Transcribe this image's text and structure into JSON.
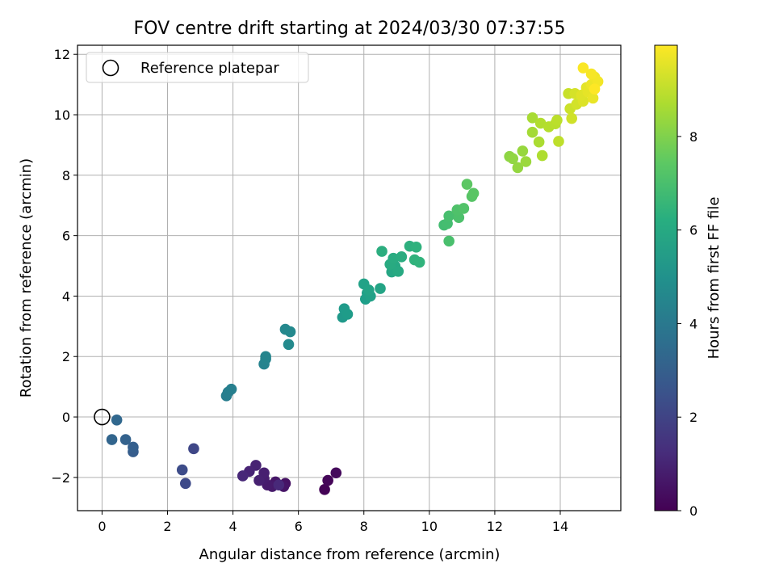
{
  "chart_data": {
    "type": "scatter",
    "title": "FOV centre drift starting at 2024/03/30 07:37:55",
    "xlabel": "Angular distance from reference (arcmin)",
    "ylabel": "Rotation from reference (arcmin)",
    "xlim": [
      -0.75,
      15.85
    ],
    "ylim": [
      -3.1,
      12.3
    ],
    "xticks": [
      0,
      2,
      4,
      6,
      8,
      10,
      12,
      14
    ],
    "yticks": [
      -2,
      0,
      2,
      4,
      6,
      8,
      10,
      12
    ],
    "grid": true,
    "legend": {
      "placement": "top-left",
      "entries": [
        "Reference platepar"
      ]
    },
    "reference_point": {
      "x": 0,
      "y": 0,
      "label": "Reference platepar"
    },
    "colorbar": {
      "label": "Hours from first FF file",
      "colormap": "viridis",
      "range": [
        0,
        9.95
      ],
      "ticks": [
        0,
        2,
        4,
        6,
        8
      ]
    },
    "series": [
      {
        "points": [
          {
            "x": 6.8,
            "y": -2.4,
            "t": 0.05
          },
          {
            "x": 6.9,
            "y": -2.1,
            "t": 0.15
          },
          {
            "x": 7.15,
            "y": -1.85,
            "t": 0.25
          },
          {
            "x": 5.6,
            "y": -2.2,
            "t": 0.45
          },
          {
            "x": 5.55,
            "y": -2.3,
            "t": 0.55
          },
          {
            "x": 5.3,
            "y": -2.15,
            "t": 0.6
          },
          {
            "x": 5.2,
            "y": -2.3,
            "t": 0.7
          },
          {
            "x": 5.05,
            "y": -2.25,
            "t": 0.75
          },
          {
            "x": 4.95,
            "y": -2.05,
            "t": 0.8
          },
          {
            "x": 4.95,
            "y": -1.85,
            "t": 0.85
          },
          {
            "x": 4.8,
            "y": -2.1,
            "t": 0.9
          },
          {
            "x": 4.7,
            "y": -1.6,
            "t": 0.95
          },
          {
            "x": 4.5,
            "y": -1.8,
            "t": 1.0
          },
          {
            "x": 4.3,
            "y": -1.95,
            "t": 1.1
          },
          {
            "x": 5.4,
            "y": -2.25,
            "t": 1.15
          },
          {
            "x": 2.8,
            "y": -1.05,
            "t": 2.1
          },
          {
            "x": 2.55,
            "y": -2.2,
            "t": 2.2
          },
          {
            "x": 2.45,
            "y": -1.75,
            "t": 2.3
          },
          {
            "x": 0.95,
            "y": -1.15,
            "t": 2.9
          },
          {
            "x": 0.95,
            "y": -1.0,
            "t": 3.0
          },
          {
            "x": 0.72,
            "y": -0.75,
            "t": 3.1
          },
          {
            "x": 0.3,
            "y": -0.75,
            "t": 3.2
          },
          {
            "x": 0.45,
            "y": -0.1,
            "t": 3.3
          },
          {
            "x": 3.8,
            "y": 0.7,
            "t": 4.2
          },
          {
            "x": 3.85,
            "y": 0.82,
            "t": 4.25
          },
          {
            "x": 3.95,
            "y": 0.92,
            "t": 4.3
          },
          {
            "x": 4.95,
            "y": 1.75,
            "t": 4.45
          },
          {
            "x": 5.0,
            "y": 1.92,
            "t": 4.5
          },
          {
            "x": 5.0,
            "y": 2.0,
            "t": 4.55
          },
          {
            "x": 5.6,
            "y": 2.9,
            "t": 4.65
          },
          {
            "x": 5.75,
            "y": 2.82,
            "t": 4.7
          },
          {
            "x": 5.7,
            "y": 2.4,
            "t": 4.75
          },
          {
            "x": 7.35,
            "y": 3.3,
            "t": 5.35
          },
          {
            "x": 7.4,
            "y": 3.58,
            "t": 5.4
          },
          {
            "x": 7.5,
            "y": 3.4,
            "t": 5.45
          },
          {
            "x": 8.05,
            "y": 3.9,
            "t": 5.55
          },
          {
            "x": 8.1,
            "y": 4.1,
            "t": 5.6
          },
          {
            "x": 8.2,
            "y": 4.0,
            "t": 5.65
          },
          {
            "x": 8.0,
            "y": 4.4,
            "t": 5.7
          },
          {
            "x": 8.15,
            "y": 4.2,
            "t": 5.75
          },
          {
            "x": 8.5,
            "y": 4.25,
            "t": 5.8
          },
          {
            "x": 8.85,
            "y": 4.8,
            "t": 5.9
          },
          {
            "x": 8.95,
            "y": 5.0,
            "t": 5.95
          },
          {
            "x": 9.05,
            "y": 4.82,
            "t": 6.0
          },
          {
            "x": 8.8,
            "y": 5.05,
            "t": 6.05
          },
          {
            "x": 8.9,
            "y": 5.25,
            "t": 6.1
          },
          {
            "x": 9.15,
            "y": 5.3,
            "t": 6.15
          },
          {
            "x": 8.55,
            "y": 5.48,
            "t": 6.2
          },
          {
            "x": 9.4,
            "y": 5.65,
            "t": 6.3
          },
          {
            "x": 9.6,
            "y": 5.62,
            "t": 6.35
          },
          {
            "x": 9.55,
            "y": 5.2,
            "t": 6.4
          },
          {
            "x": 9.7,
            "y": 5.12,
            "t": 6.45
          },
          {
            "x": 10.45,
            "y": 6.35,
            "t": 6.9
          },
          {
            "x": 10.55,
            "y": 6.4,
            "t": 6.95
          },
          {
            "x": 10.6,
            "y": 6.65,
            "t": 7.0
          },
          {
            "x": 10.6,
            "y": 5.82,
            "t": 7.05
          },
          {
            "x": 10.9,
            "y": 6.6,
            "t": 7.1
          },
          {
            "x": 10.85,
            "y": 6.85,
            "t": 7.15
          },
          {
            "x": 11.05,
            "y": 6.9,
            "t": 7.2
          },
          {
            "x": 11.3,
            "y": 7.3,
            "t": 7.3
          },
          {
            "x": 11.35,
            "y": 7.4,
            "t": 7.35
          },
          {
            "x": 11.15,
            "y": 7.7,
            "t": 7.4
          },
          {
            "x": 12.45,
            "y": 8.62,
            "t": 8.25
          },
          {
            "x": 12.55,
            "y": 8.55,
            "t": 8.3
          },
          {
            "x": 12.7,
            "y": 8.25,
            "t": 8.35
          },
          {
            "x": 12.85,
            "y": 8.8,
            "t": 8.4
          },
          {
            "x": 12.95,
            "y": 8.45,
            "t": 8.45
          },
          {
            "x": 13.15,
            "y": 9.42,
            "t": 8.6
          },
          {
            "x": 13.15,
            "y": 9.9,
            "t": 8.65
          },
          {
            "x": 13.35,
            "y": 9.1,
            "t": 8.7
          },
          {
            "x": 13.45,
            "y": 8.65,
            "t": 8.75
          },
          {
            "x": 13.4,
            "y": 9.72,
            "t": 8.8
          },
          {
            "x": 13.65,
            "y": 9.6,
            "t": 8.85
          },
          {
            "x": 13.85,
            "y": 9.7,
            "t": 8.9
          },
          {
            "x": 13.9,
            "y": 9.82,
            "t": 8.95
          },
          {
            "x": 13.95,
            "y": 9.12,
            "t": 9.0
          },
          {
            "x": 14.25,
            "y": 10.7,
            "t": 9.15
          },
          {
            "x": 14.3,
            "y": 10.2,
            "t": 9.2
          },
          {
            "x": 14.35,
            "y": 9.88,
            "t": 9.25
          },
          {
            "x": 14.5,
            "y": 10.35,
            "t": 9.3
          },
          {
            "x": 14.45,
            "y": 10.7,
            "t": 9.35
          },
          {
            "x": 14.7,
            "y": 10.45,
            "t": 9.45
          },
          {
            "x": 14.65,
            "y": 10.65,
            "t": 9.5
          },
          {
            "x": 14.8,
            "y": 10.9,
            "t": 9.55
          },
          {
            "x": 14.85,
            "y": 10.75,
            "t": 9.6
          },
          {
            "x": 15.0,
            "y": 10.55,
            "t": 9.65
          },
          {
            "x": 14.95,
            "y": 11.0,
            "t": 9.7
          },
          {
            "x": 15.05,
            "y": 11.25,
            "t": 9.75
          },
          {
            "x": 15.15,
            "y": 11.1,
            "t": 9.8
          },
          {
            "x": 14.95,
            "y": 11.35,
            "t": 9.85
          },
          {
            "x": 14.7,
            "y": 11.55,
            "t": 9.9
          },
          {
            "x": 15.05,
            "y": 10.85,
            "t": 9.95
          }
        ]
      }
    ]
  }
}
